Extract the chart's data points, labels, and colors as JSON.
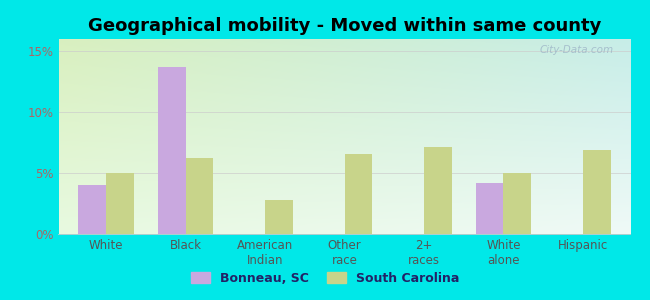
{
  "title": "Geographical mobility - Moved within same county",
  "categories": [
    "White",
    "Black",
    "American\nIndian",
    "Other\nrace",
    "2+\nraces",
    "White\nalone",
    "Hispanic"
  ],
  "bonneau_values": [
    4.0,
    13.7,
    0.0,
    0.0,
    0.0,
    4.2,
    0.0
  ],
  "sc_values": [
    5.0,
    6.2,
    2.8,
    6.6,
    7.1,
    5.0,
    6.9
  ],
  "bonneau_color": "#c9a8df",
  "sc_color": "#c8d48a",
  "background_outer": "#00e8e8",
  "yticks": [
    0,
    5,
    10,
    15
  ],
  "ylim": [
    0,
    16
  ],
  "bar_width": 0.35,
  "legend_bonneau": "Bonneau, SC",
  "legend_sc": "South Carolina",
  "title_fontsize": 13,
  "tick_fontsize": 8.5,
  "legend_fontsize": 9,
  "ytick_color": "#aa6666",
  "xtick_color": "#555555",
  "watermark_text": "City-Data.com",
  "watermark_color": "#a0b8c8"
}
